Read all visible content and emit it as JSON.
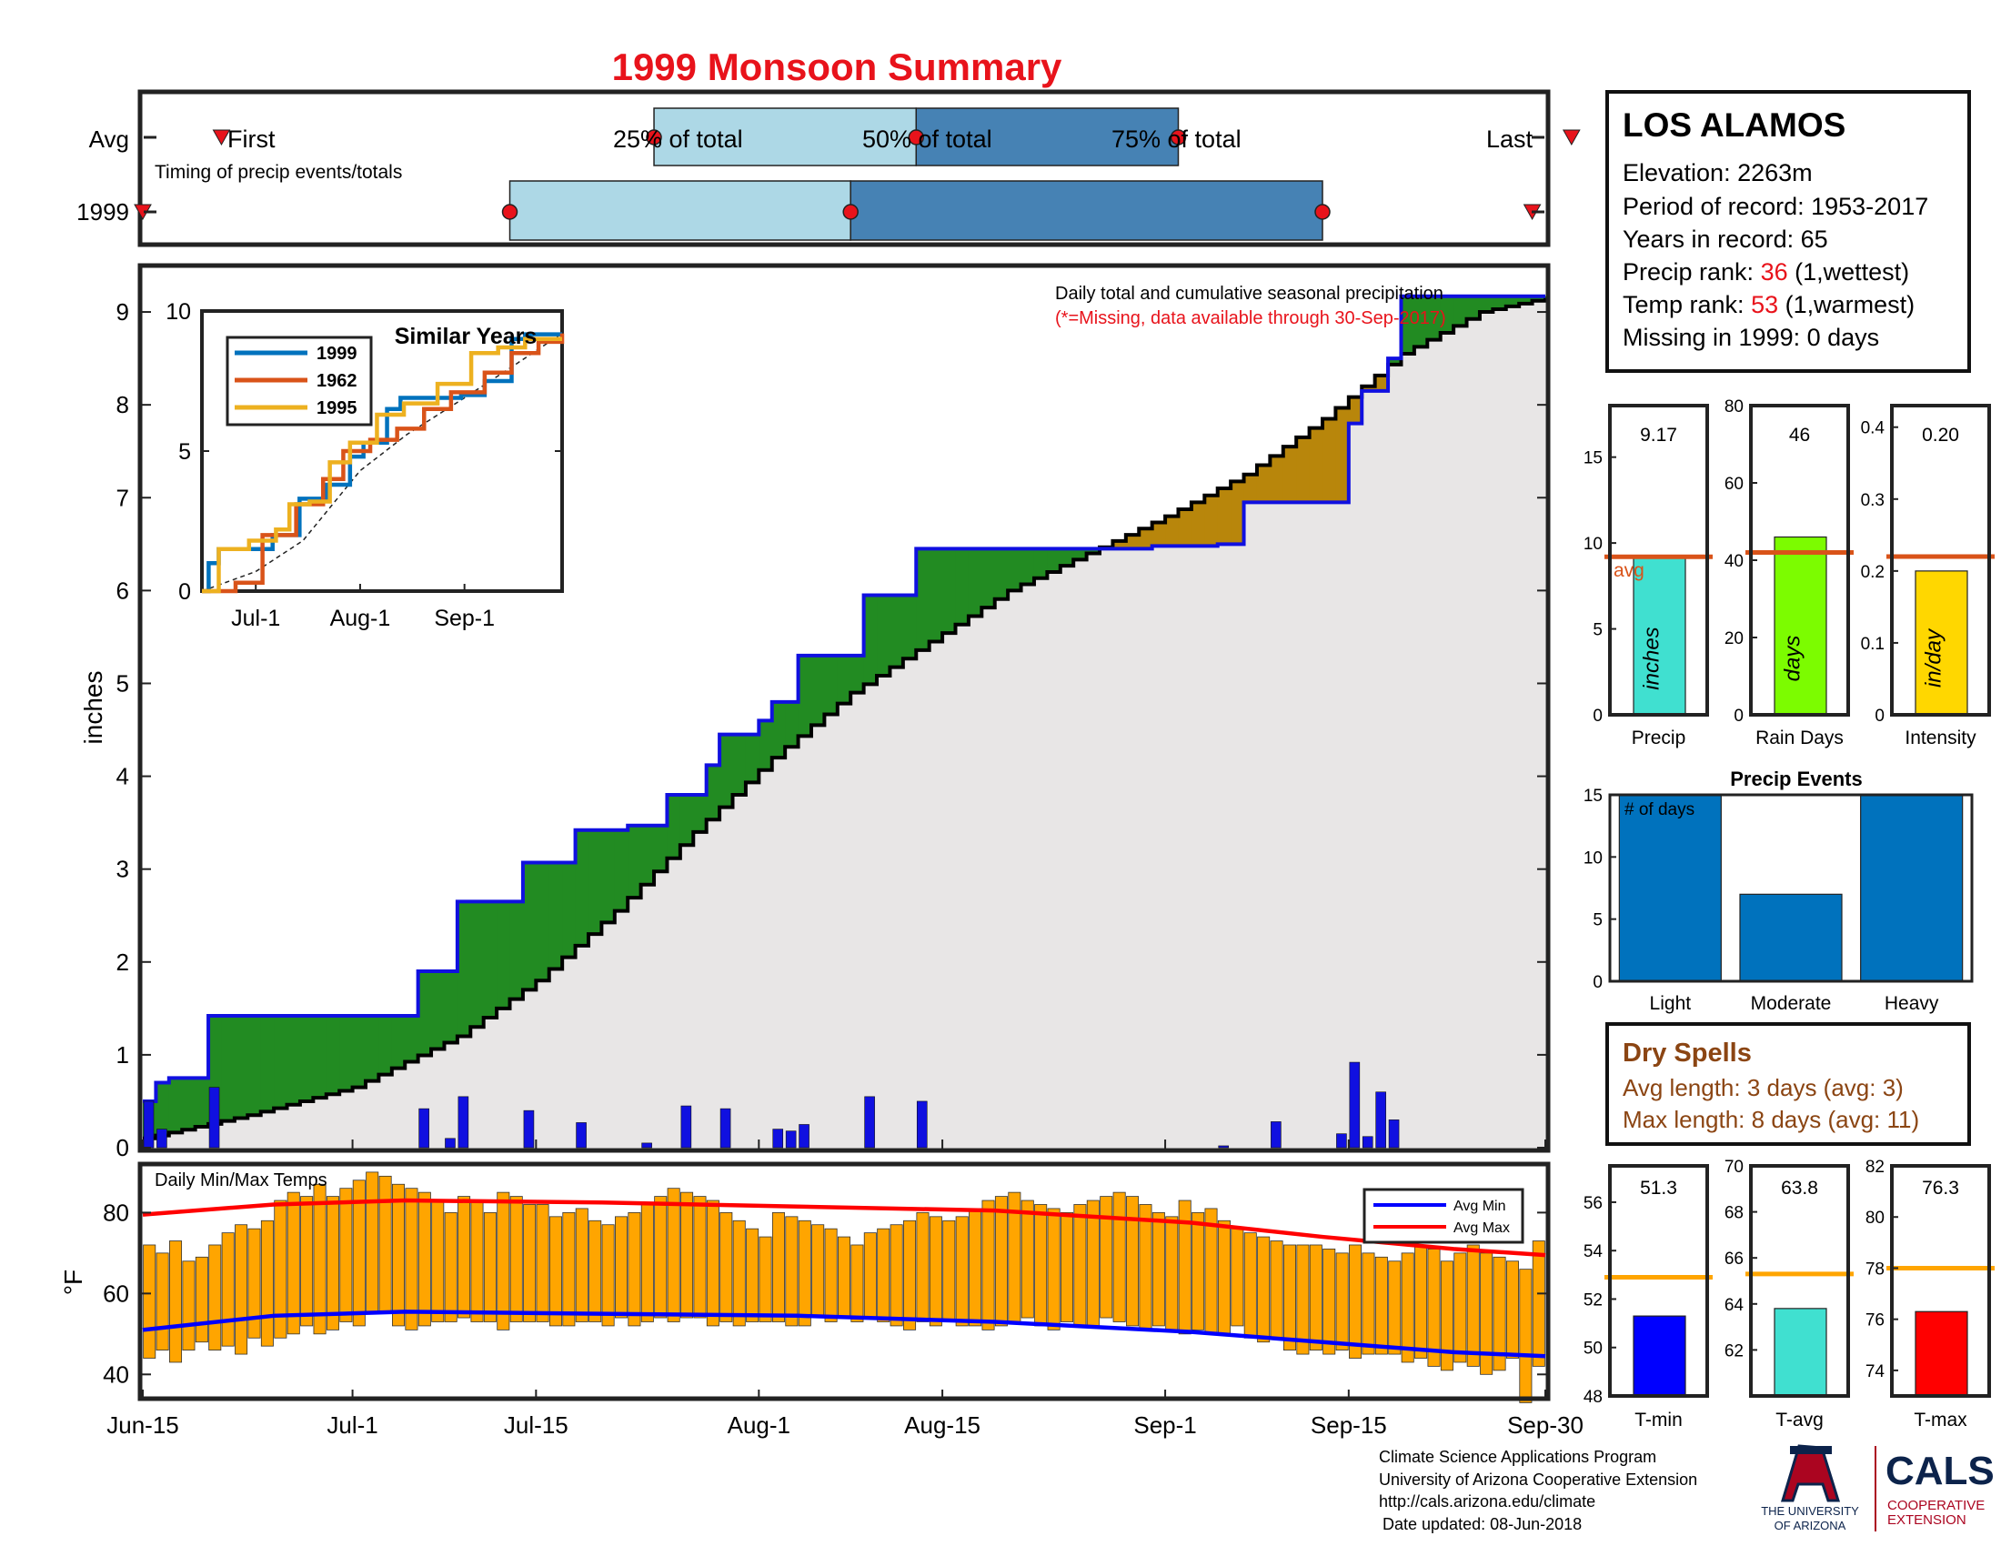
{
  "title": "1999 Monsoon Summary",
  "station": {
    "name": "LOS ALAMOS",
    "elevation_label": "Elevation: 2263m",
    "period_label": "Period of record: 1953-2017",
    "years_label": "Years in record: 65",
    "precip_rank_prefix": "Precip rank: ",
    "precip_rank": "36",
    "precip_rank_suffix": " (1,wettest)",
    "temp_rank_prefix": "Temp rank: ",
    "temp_rank": "53",
    "temp_rank_suffix": " (1,warmest)",
    "missing_label": "Missing in 1999: 0 days"
  },
  "timing": {
    "row_avg": "Avg",
    "row_year": "1999",
    "first": "First",
    "p25": "25% of total",
    "p50": "50% of total",
    "p75": "75% of total",
    "last": "Last",
    "caption": "Timing of precip events/totals",
    "avg_days": {
      "first": 6,
      "p25": 39,
      "p50": 59,
      "p75": 79,
      "last": 109
    },
    "year_days": {
      "first": 0,
      "p25": 28,
      "p50": 54,
      "p75": 90,
      "last": 106
    }
  },
  "dry_spells": {
    "title": "Dry Spells",
    "avg_label": "Avg length: 3 days (avg: 3)",
    "max_label": "Max length: 8 days (avg: 11)"
  },
  "footer": {
    "line1": "Climate Science Applications Program",
    "line2": "University of Arizona Cooperative Extension",
    "line3": "http://cals.arizona.edu/climate",
    "line4": "Date updated: 08-Jun-2018",
    "ua_line1": "THE UNIVERSITY",
    "ua_line2": "OF ARIZONA",
    "cals": "CALS",
    "cals_line1": "COOPERATIVE",
    "cals_line2": "EXTENSION"
  },
  "colors": {
    "title": "#e8131b",
    "above_avg": "#228b22",
    "below_avg": "#b8860b",
    "cumulative_line": "#1010e0",
    "avg_line": "#000000",
    "fill": "#e8e6e6",
    "quart_light": "#add8e6",
    "quart_dark": "#4682b4",
    "temp_bar": "#ffa500",
    "avg_min": "#0000ff",
    "avg_max": "#ff0000",
    "bar_blue": "#0072bd",
    "ref_line_orange": "#d95319",
    "ref_line_temp": "#ffa500"
  },
  "chart_data": [
    {
      "id": "cumulative",
      "type": "area",
      "annotation": "Daily total and cumulative seasonal precipitation",
      "annotation2": "(*=Missing, data available through 30-Sep-2017)",
      "ylabel": "inches",
      "ylim": [
        0,
        9.5
      ],
      "yticks": [
        0,
        1,
        2,
        3,
        4,
        5,
        6,
        7,
        8,
        9
      ],
      "xlim": [
        0,
        107
      ],
      "xticks": [
        {
          "d": 0,
          "label": "Jun-15"
        },
        {
          "d": 16,
          "label": "Jul-1"
        },
        {
          "d": 30,
          "label": "Jul-15"
        },
        {
          "d": 47,
          "label": "Aug-1"
        },
        {
          "d": 61,
          "label": "Aug-15"
        },
        {
          "d": 78,
          "label": "Sep-1"
        },
        {
          "d": 92,
          "label": "Sep-15"
        },
        {
          "d": 107,
          "label": "Sep-30"
        }
      ],
      "series": [
        {
          "name": "1999",
          "steps": [
            [
              0,
              0.5
            ],
            [
              1,
              0.7
            ],
            [
              2,
              0.75
            ],
            [
              5,
              1.42
            ],
            [
              21,
              1.9
            ],
            [
              24,
              2.65
            ],
            [
              29,
              3.07
            ],
            [
              33,
              3.42
            ],
            [
              37,
              3.47
            ],
            [
              40,
              3.8
            ],
            [
              41,
              3.8
            ],
            [
              43,
              4.12
            ],
            [
              44,
              4.45
            ],
            [
              47,
              4.6
            ],
            [
              48,
              4.8
            ],
            [
              50,
              5.3
            ],
            [
              55,
              5.95
            ],
            [
              59,
              6.45
            ],
            [
              63,
              6.45
            ],
            [
              77,
              6.48
            ],
            [
              82,
              6.5
            ],
            [
              84,
              6.95
            ],
            [
              91,
              6.95
            ],
            [
              92,
              7.8
            ],
            [
              93,
              8.15
            ],
            [
              95,
              8.5
            ],
            [
              96,
              9.17
            ],
            [
              107,
              9.17
            ]
          ]
        },
        {
          "name": "avg",
          "points": [
            [
              0,
              0.1
            ],
            [
              8,
              0.35
            ],
            [
              16,
              0.65
            ],
            [
              24,
              1.2
            ],
            [
              30,
              1.8
            ],
            [
              36,
              2.55
            ],
            [
              42,
              3.4
            ],
            [
              48,
              4.2
            ],
            [
              54,
              4.9
            ],
            [
              60,
              5.45
            ],
            [
              66,
              6.0
            ],
            [
              72,
              6.4
            ],
            [
              78,
              6.8
            ],
            [
              84,
              7.25
            ],
            [
              90,
              7.85
            ],
            [
              96,
              8.55
            ],
            [
              102,
              9.0
            ],
            [
              107,
              9.15
            ]
          ]
        }
      ],
      "daily_precip": [
        [
          0,
          0.5
        ],
        [
          1,
          0.2
        ],
        [
          5,
          0.65
        ],
        [
          21,
          0.42
        ],
        [
          23,
          0.1
        ],
        [
          24,
          0.55
        ],
        [
          29,
          0.4
        ],
        [
          33,
          0.27
        ],
        [
          38,
          0.05
        ],
        [
          41,
          0.45
        ],
        [
          44,
          0.42
        ],
        [
          48,
          0.2
        ],
        [
          49,
          0.18
        ],
        [
          50,
          0.25
        ],
        [
          55,
          0.55
        ],
        [
          59,
          0.5
        ],
        [
          82,
          0.02
        ],
        [
          86,
          0.28
        ],
        [
          91,
          0.15
        ],
        [
          92,
          0.92
        ],
        [
          93,
          0.12
        ],
        [
          94,
          0.6
        ],
        [
          95,
          0.3
        ]
      ]
    },
    {
      "id": "similar-years",
      "type": "line",
      "title": "Similar Years",
      "ylim": [
        0,
        10
      ],
      "yticks": [
        0,
        5,
        10
      ],
      "xticks": [
        {
          "d": 16,
          "label": "Jul-1"
        },
        {
          "d": 47,
          "label": "Aug-1"
        },
        {
          "d": 78,
          "label": "Sep-1"
        }
      ],
      "series": [
        {
          "name": "1999",
          "color": "#0072bd",
          "points": [
            [
              0,
              0
            ],
            [
              2,
              1
            ],
            [
              5,
              1.5
            ],
            [
              21,
              2
            ],
            [
              29,
              3.3
            ],
            [
              37,
              3.8
            ],
            [
              44,
              4.8
            ],
            [
              48,
              5.3
            ],
            [
              55,
              6.5
            ],
            [
              59,
              6.9
            ],
            [
              77,
              7.0
            ],
            [
              84,
              7.5
            ],
            [
              92,
              9.0
            ],
            [
              96,
              9.17
            ],
            [
              107,
              9.17
            ]
          ]
        },
        {
          "name": "1962",
          "color": "#d95319",
          "points": [
            [
              0,
              0
            ],
            [
              10,
              0.3
            ],
            [
              18,
              2
            ],
            [
              28,
              3.1
            ],
            [
              36,
              4.0
            ],
            [
              42,
              5.0
            ],
            [
              50,
              5.4
            ],
            [
              58,
              5.8
            ],
            [
              66,
              6.5
            ],
            [
              74,
              7.1
            ],
            [
              84,
              7.8
            ],
            [
              92,
              8.5
            ],
            [
              100,
              8.9
            ],
            [
              107,
              9.2
            ]
          ]
        },
        {
          "name": "1995",
          "color": "#edb120",
          "points": [
            [
              0,
              0
            ],
            [
              5,
              1.5
            ],
            [
              14,
              1.8
            ],
            [
              22,
              2.2
            ],
            [
              26,
              3.1
            ],
            [
              32,
              3.2
            ],
            [
              38,
              4.6
            ],
            [
              44,
              5.3
            ],
            [
              52,
              6.3
            ],
            [
              60,
              6.7
            ],
            [
              70,
              7.4
            ],
            [
              80,
              8.5
            ],
            [
              88,
              8.7
            ],
            [
              96,
              9.0
            ],
            [
              107,
              9.0
            ]
          ]
        }
      ],
      "avg_points": [
        [
          0,
          0
        ],
        [
          16,
          0.7
        ],
        [
          30,
          1.8
        ],
        [
          47,
          4.3
        ],
        [
          61,
          5.6
        ],
        [
          78,
          6.9
        ],
        [
          92,
          8.0
        ],
        [
          107,
          9.2
        ]
      ]
    },
    {
      "id": "daily-temps",
      "type": "bar",
      "title": "Daily Min/Max Temps",
      "ylabel": "°F",
      "ylim": [
        34,
        92
      ],
      "yticks": [
        40,
        60,
        80
      ],
      "legend": [
        "Avg Min",
        "Avg Max"
      ],
      "max_f": [
        72,
        70,
        73,
        68,
        69,
        72,
        75,
        77,
        76,
        78,
        83,
        85,
        84,
        87,
        84,
        86,
        88,
        90,
        89,
        87,
        86,
        85,
        83,
        80,
        84,
        83,
        80,
        85,
        84,
        82,
        82,
        79,
        80,
        81,
        78,
        77,
        79,
        80,
        82,
        84,
        86,
        85,
        84,
        83,
        80,
        78,
        76,
        74,
        80,
        79,
        78,
        77,
        76,
        74,
        72,
        75,
        76,
        77,
        78,
        80,
        79,
        78,
        79,
        81,
        83,
        84,
        85,
        83,
        82,
        81,
        80,
        82,
        83,
        84,
        85,
        84,
        82,
        80,
        79,
        83,
        80,
        81,
        78,
        76,
        75,
        74,
        73,
        72,
        72,
        72,
        71,
        70,
        72,
        70,
        69,
        68,
        70,
        72,
        71,
        68,
        70,
        72,
        70,
        69,
        68,
        66,
        73
      ],
      "min_f": [
        44,
        46,
        43,
        46,
        48,
        46,
        47,
        45,
        49,
        47,
        49,
        50,
        52,
        50,
        51,
        53,
        52,
        55,
        55,
        52,
        51,
        52,
        53,
        53,
        54,
        53,
        53,
        51,
        53,
        53,
        53,
        52,
        52,
        53,
        53,
        52,
        54,
        52,
        53,
        54,
        53,
        54,
        54,
        52,
        53,
        52,
        53,
        53,
        53,
        52,
        52,
        54,
        53,
        54,
        53,
        54,
        53,
        52,
        51,
        53,
        52,
        53,
        52,
        52,
        51,
        52,
        53,
        54,
        52,
        51,
        53,
        52,
        52,
        54,
        53,
        52,
        51,
        52,
        51,
        50,
        51,
        50,
        50,
        52,
        49,
        48,
        49,
        46,
        45,
        46,
        45,
        46,
        44,
        45,
        45,
        45,
        43,
        44,
        42,
        41,
        43,
        42,
        40,
        41,
        44,
        33,
        42
      ],
      "avg_max": [
        [
          0,
          79.5
        ],
        [
          10,
          82
        ],
        [
          20,
          83
        ],
        [
          35,
          82.5
        ],
        [
          50,
          81.5
        ],
        [
          65,
          80.5
        ],
        [
          80,
          77.5
        ],
        [
          90,
          74
        ],
        [
          100,
          71
        ],
        [
          107,
          69.5
        ]
      ],
      "avg_min": [
        [
          0,
          51
        ],
        [
          10,
          54.5
        ],
        [
          20,
          55.5
        ],
        [
          35,
          55
        ],
        [
          50,
          54.5
        ],
        [
          65,
          53
        ],
        [
          80,
          50.5
        ],
        [
          90,
          48
        ],
        [
          100,
          45.5
        ],
        [
          107,
          44.5
        ]
      ]
    },
    {
      "id": "seasonal-totals",
      "type": "bar",
      "panels": [
        {
          "label": "Precip",
          "value": 9.17,
          "value_label": "9.17",
          "unit": "inches",
          "avg": 9.2,
          "avg_label": "avg",
          "ylim": [
            0,
            18
          ],
          "yticks": [
            0,
            5,
            10,
            15
          ],
          "color": "#40e0d0"
        },
        {
          "label": "Rain Days",
          "value": 46,
          "value_label": "46",
          "unit": "days",
          "avg": 42,
          "ylim": [
            0,
            80
          ],
          "yticks": [
            0,
            20,
            40,
            60,
            80
          ],
          "color": "#7cfc00"
        },
        {
          "label": "Intensity",
          "value": 0.2,
          "value_label": "0.20",
          "unit": "in/day",
          "avg": 0.22,
          "ylim": [
            0,
            0.43
          ],
          "yticks": [
            0,
            0.1,
            0.2,
            0.3,
            0.4
          ],
          "color": "#ffd700"
        }
      ]
    },
    {
      "id": "precip-events",
      "type": "bar",
      "title": "Precip Events",
      "annotation": "# of days",
      "categories": [
        "Light",
        "Moderate",
        "Heavy"
      ],
      "values": [
        15,
        7,
        15
      ],
      "ylim": [
        0,
        15
      ],
      "yticks": [
        0,
        5,
        10,
        15
      ]
    },
    {
      "id": "temp-summary",
      "type": "bar",
      "panels": [
        {
          "label": "T-min",
          "value": 51.3,
          "value_label": "51.3",
          "avg": 52.9,
          "ylim": [
            48,
            57.5
          ],
          "yticks": [
            48,
            50,
            52,
            54,
            56
          ],
          "color": "#0000ff"
        },
        {
          "label": "T-avg",
          "value": 63.8,
          "value_label": "63.8",
          "avg": 65.3,
          "ylim": [
            60,
            70
          ],
          "yticks": [
            62,
            64,
            66,
            68,
            70
          ],
          "color": "#40e0d0"
        },
        {
          "label": "T-max",
          "value": 76.3,
          "value_label": "76.3",
          "avg": 78,
          "ylim": [
            73,
            82
          ],
          "yticks": [
            74,
            76,
            78,
            80,
            82
          ],
          "color": "#ff0000"
        }
      ]
    }
  ]
}
